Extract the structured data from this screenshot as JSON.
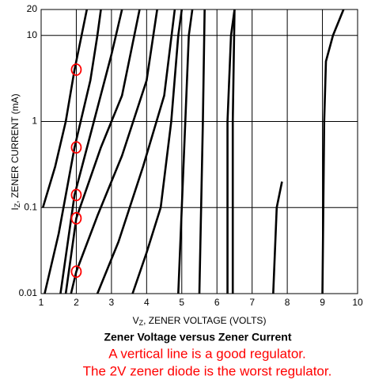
{
  "chart_data": {
    "type": "line",
    "title": "Zener Voltage versus Zener Current",
    "notes": [
      "A vertical line is a good regulator.",
      "The 2V zener diode is the worst regulator."
    ],
    "x_label": {
      "symbol": "V",
      "subscript": "Z",
      "text": ", ZENER VOLTAGE (VOLTS)"
    },
    "y_label": {
      "symbol": "I",
      "subscript": "Z",
      "text": ", ZENER CURRENT (mA)"
    },
    "xlim": [
      1,
      10
    ],
    "xticks": [
      1,
      2,
      3,
      4,
      5,
      6,
      7,
      8,
      9,
      10
    ],
    "ylim": [
      0.01,
      20
    ],
    "yticks": [
      0.01,
      0.1,
      1,
      10,
      20
    ],
    "log_y": true,
    "grid": true,
    "color": "#000000",
    "series": [
      {
        "x": [
          1.05,
          1.4,
          1.7,
          1.95,
          2.15,
          2.3
        ],
        "values": [
          0.1,
          0.3,
          1,
          4,
          10,
          20
        ]
      },
      {
        "x": [
          1.1,
          1.5,
          1.95,
          2.4,
          2.6,
          2.7
        ],
        "values": [
          0.01,
          0.05,
          0.5,
          3,
          10,
          20
        ]
      },
      {
        "x": [
          1.55,
          1.95,
          2.5,
          3.0,
          3.3
        ],
        "values": [
          0.01,
          0.14,
          1,
          6,
          20
        ]
      },
      {
        "x": [
          1.7,
          2.0,
          2.7,
          3.3,
          3.8
        ],
        "values": [
          0.01,
          0.075,
          0.5,
          2,
          20
        ]
      },
      {
        "x": [
          1.85,
          2.0,
          2.6,
          3.3,
          4.0,
          4.3
        ],
        "values": [
          0.01,
          0.018,
          0.08,
          0.4,
          3,
          20
        ]
      },
      {
        "x": [
          2.6,
          3.2,
          3.9,
          4.5,
          4.8
        ],
        "values": [
          0.01,
          0.04,
          0.3,
          2,
          20
        ]
      },
      {
        "x": [
          3.6,
          4.0,
          4.4,
          4.7,
          4.9,
          5.0
        ],
        "values": [
          0.01,
          0.03,
          0.1,
          1,
          10,
          20
        ]
      },
      {
        "x": [
          4.9,
          5.0,
          5.1,
          5.2,
          5.3
        ],
        "values": [
          0.01,
          0.1,
          1,
          10,
          20
        ]
      },
      {
        "x": [
          5.5,
          5.55,
          5.6,
          5.65
        ],
        "values": [
          0.01,
          0.1,
          1,
          20
        ]
      },
      {
        "x": [
          6.3,
          6.3,
          6.4,
          6.5
        ],
        "values": [
          0.01,
          1,
          10,
          20
        ]
      },
      {
        "x": [
          6.45,
          6.45,
          6.5
        ],
        "values": [
          0.01,
          1,
          20
        ]
      },
      {
        "x": [
          7.6,
          7.7,
          7.85
        ],
        "values": [
          0.01,
          0.1,
          0.2
        ]
      },
      {
        "x": [
          9.0,
          9.05,
          9.1,
          9.3,
          9.6
        ],
        "values": [
          0.01,
          1,
          5,
          10,
          20
        ]
      }
    ],
    "highlight_points": {
      "x": [
        2,
        2,
        2,
        2,
        2
      ],
      "values": [
        4,
        0.5,
        0.14,
        0.075,
        0.018
      ],
      "color": "#ff0000"
    }
  }
}
